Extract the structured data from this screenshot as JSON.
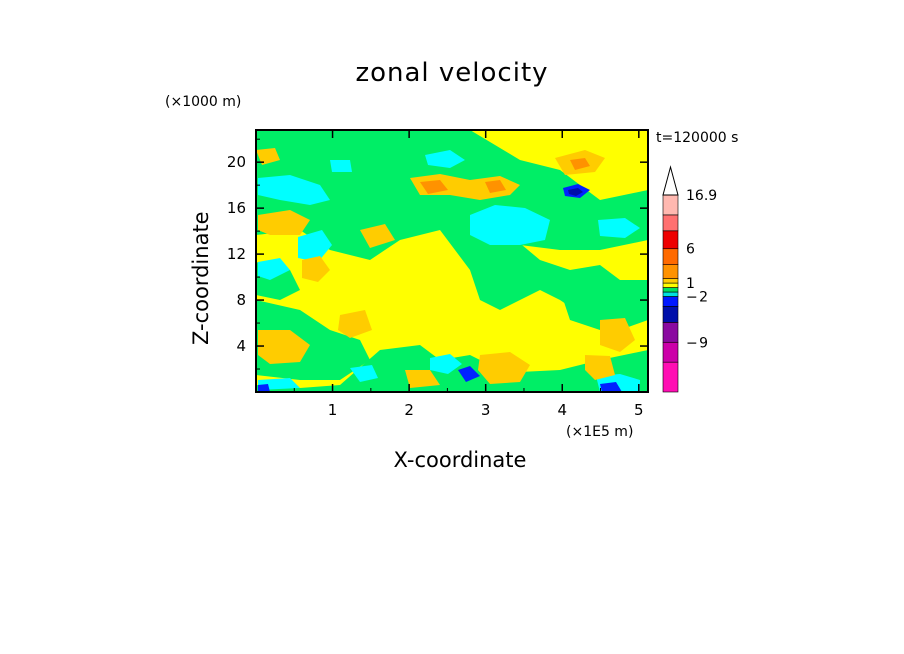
{
  "chart_data": {
    "type": "heatmap",
    "title": "zonal velocity",
    "xlabel": "X-coordinate",
    "ylabel": "Z-coordinate",
    "x_unit": "(×1E5 m)",
    "y_unit": "(×1000 m)",
    "time_label": "t=120000 s",
    "xlim": [
      0.0,
      5.12
    ],
    "ylim": [
      0.0,
      22.8
    ],
    "x_ticks": [
      "1",
      "2",
      "3",
      "4",
      "5"
    ],
    "x_tick_values": [
      1,
      2,
      3,
      4,
      5
    ],
    "y_ticks": [
      "4",
      "8",
      "12",
      "16",
      "20"
    ],
    "y_tick_values": [
      4,
      8,
      12,
      16,
      20
    ],
    "colorbar": {
      "labels": [
        "16.9",
        "6",
        "1",
        "− 2",
        "− 9"
      ],
      "colors": [
        "#ff0eb3",
        "#cc00a8",
        "#8a0aa0",
        "#000faa",
        "#0018ff",
        "#00e0e0",
        "#00e060",
        "#ffff00",
        "#ffcc00",
        "#ff9200",
        "#ff6a00",
        "#ee0000",
        "#ff7070",
        "#ffb8b0"
      ],
      "extend": "max"
    },
    "field_colors": {
      "background": "#ffff00",
      "cyan": "#00ffff",
      "green": "#00ee66",
      "orange": "#ffcc00",
      "dark_orange": "#ff9200",
      "blue": "#0022ff",
      "navy": "#000faa"
    }
  }
}
